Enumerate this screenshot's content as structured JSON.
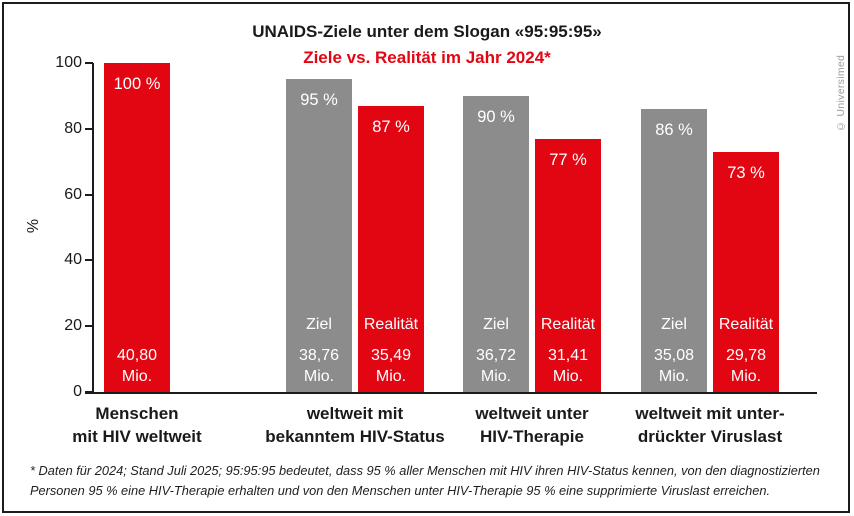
{
  "page": {
    "background": "#ffffff",
    "frame_color": "#1c1c1c"
  },
  "header": {
    "title": "UNAIDS-Ziele unter dem Slogan «95:95:95»",
    "subtitle": "Ziele vs. Realität im Jahr 2024*"
  },
  "credit": "© Universimed",
  "footnote": {
    "lines": [
      "* Daten für 2024; Stand Juli 2025; 95:95:95 bedeutet, dass 95 % aller Menschen mit HIV ihren HIV-Status kennen, von den diagnostizierten",
      "Personen 95 % eine HIV-Therapie erhalten und von den Menschen unter HIV-Therapie 95 % eine supprimierte Viruslast erreichen."
    ]
  },
  "colors": {
    "red": "#e20613",
    "gray": "#8c8c8c",
    "axis": "#1c1c1c",
    "subtitle_red": "#e20613",
    "credit_gray": "#9a9a9a"
  },
  "chart_data": {
    "type": "bar",
    "title": "UNAIDS-Ziele unter dem Slogan «95:95:95»",
    "subtitle": "Ziele vs. Realität im Jahr 2024*",
    "xlabel": "",
    "ylabel": "%",
    "ylim": [
      0,
      100
    ],
    "yticks": [
      0,
      20,
      40,
      60,
      80,
      100
    ],
    "grid": false,
    "legend_position": "inside-bars",
    "series_names": [
      "Ziel",
      "Realität"
    ],
    "groups": [
      {
        "category_lines": [
          "Menschen",
          "mit HIV weltweit"
        ],
        "bars": [
          {
            "series": "",
            "percent": 100,
            "percent_label": "100 %",
            "value": "40,80",
            "unit": "Mio.",
            "color": "red"
          }
        ]
      },
      {
        "category_lines": [
          "weltweit mit",
          "bekanntem HIV-Status"
        ],
        "bars": [
          {
            "series": "Ziel",
            "percent": 95,
            "percent_label": "95 %",
            "value": "38,76",
            "unit": "Mio.",
            "color": "gray"
          },
          {
            "series": "Realität",
            "percent": 87,
            "percent_label": "87 %",
            "value": "35,49",
            "unit": "Mio.",
            "color": "red"
          }
        ]
      },
      {
        "category_lines": [
          "weltweit unter",
          "HIV-Therapie"
        ],
        "bars": [
          {
            "series": "Ziel",
            "percent": 90,
            "percent_label": "90 %",
            "value": "36,72",
            "unit": "Mio.",
            "color": "gray"
          },
          {
            "series": "Realität",
            "percent": 77,
            "percent_label": "77 %",
            "value": "31,41",
            "unit": "Mio.",
            "color": "red"
          }
        ]
      },
      {
        "category_lines": [
          "weltweit mit unter-",
          "drückter Viruslast"
        ],
        "bars": [
          {
            "series": "Ziel",
            "percent": 86,
            "percent_label": "86 %",
            "value": "35,08",
            "unit": "Mio.",
            "color": "gray"
          },
          {
            "series": "Realität",
            "percent": 73,
            "percent_label": "73 %",
            "value": "29,78",
            "unit": "Mio.",
            "color": "red"
          }
        ]
      }
    ]
  }
}
